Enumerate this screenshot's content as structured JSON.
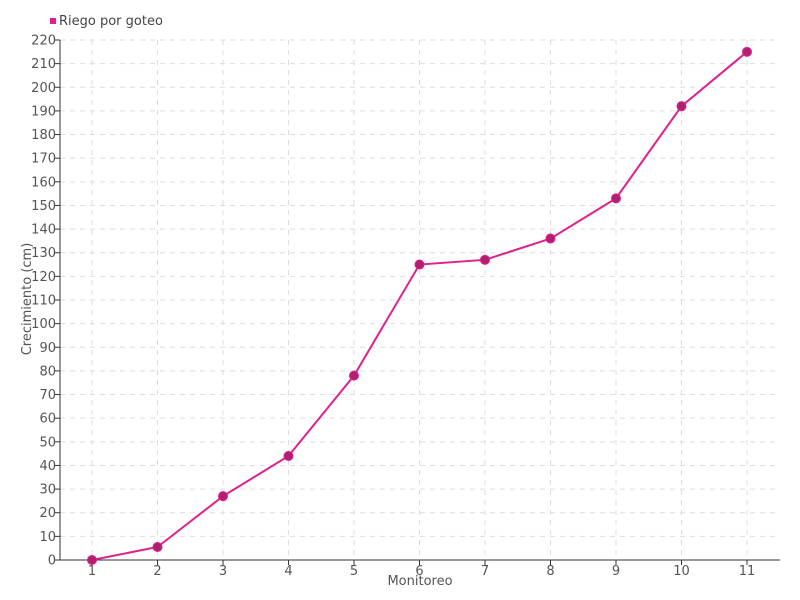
{
  "chart_data": {
    "type": "line",
    "title": "",
    "xlabel": "Monitoreo",
    "ylabel": "Crecimiento (cm)",
    "categories": [
      "1",
      "2",
      "3",
      "4",
      "5",
      "6",
      "7",
      "8",
      "9",
      "10",
      "11"
    ],
    "series": [
      {
        "name": "Riego por goteo",
        "color": "#e0208c",
        "marker_color": "#b0206e",
        "values": [
          0,
          5.5,
          27,
          44,
          78,
          125,
          127,
          136,
          153,
          192,
          215
        ]
      }
    ],
    "ylim": [
      0,
      220
    ],
    "ytick_step": 10,
    "grid": true,
    "legend": "top-left"
  }
}
